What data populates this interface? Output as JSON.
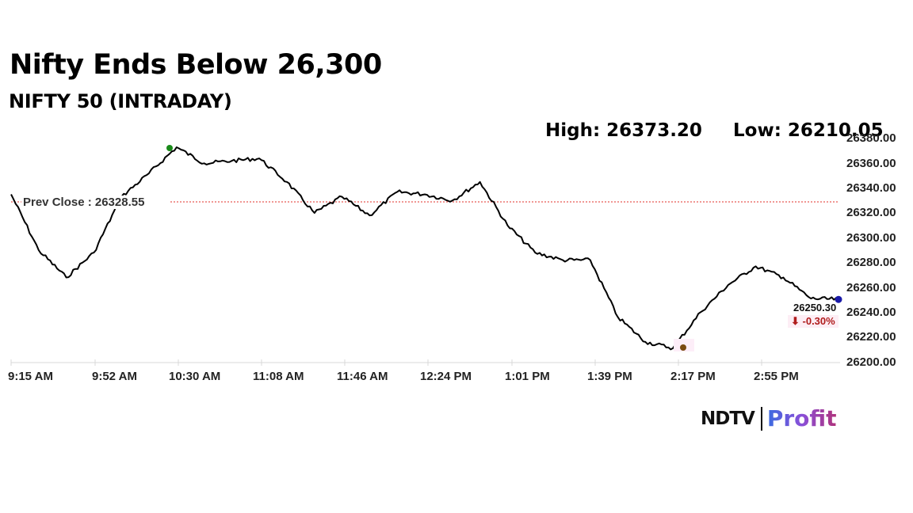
{
  "header": {
    "title": "Nifty Ends Below 26,300",
    "subtitle": "NIFTY 50 (INTRADAY)",
    "high_label": "High: 26373.20",
    "low_label": "Low: 26210.05"
  },
  "annotations": {
    "prev_close_label": "Prev Close : 26328.55",
    "last_value": "26250.30",
    "change": "⬇ -0.30%"
  },
  "y_ticks": [
    "26380.00",
    "26360.00",
    "26340.00",
    "26320.00",
    "26300.00",
    "26280.00",
    "26260.00",
    "26240.00",
    "26220.00",
    "26200.00"
  ],
  "x_ticks": [
    "9:15 AM",
    "9:52 AM",
    "10:30 AM",
    "11:08 AM",
    "11:46 AM",
    "12:24 PM",
    "1:01 PM",
    "1:39 PM",
    "2:17 PM",
    "2:55 PM"
  ],
  "logo": {
    "brand": "NDTV",
    "product": "Profit"
  },
  "colors": {
    "line": "#000000",
    "prev_close": "#e0302a",
    "high_marker": "#1a8a1a",
    "low_marker": "#7a4a10",
    "last_marker": "#1a1aa8",
    "negative": "#b01c1c"
  },
  "chart_data": {
    "type": "line",
    "title": "Nifty Ends Below 26,300",
    "subtitle": "NIFTY 50 (INTRADAY)",
    "xlabel": "",
    "ylabel": "",
    "ylim": [
      26200,
      26380
    ],
    "x": [
      "9:15 AM",
      "9:30 AM",
      "9:40 AM",
      "9:52 AM",
      "10:05 AM",
      "10:20 AM",
      "10:30 AM",
      "10:45 AM",
      "11:00 AM",
      "11:08 AM",
      "11:20 AM",
      "11:35 AM",
      "11:46 AM",
      "12:00 PM",
      "12:10 PM",
      "12:24 PM",
      "12:35 PM",
      "12:45 PM",
      "1:01 PM",
      "1:15 PM",
      "1:25 PM",
      "1:39 PM",
      "1:50 PM",
      "2:05 PM",
      "2:17 PM",
      "2:30 PM",
      "2:45 PM",
      "2:55 PM",
      "3:05 PM",
      "3:15 PM",
      "3:29 PM"
    ],
    "series": [
      {
        "name": "NIFTY 50",
        "values": [
          26335,
          26290,
          26268,
          26288,
          26333,
          26352,
          26373,
          26360,
          26362,
          26364,
          26345,
          26320,
          26333,
          26318,
          26337,
          26335,
          26330,
          26345,
          26310,
          26288,
          26282,
          26282,
          26236,
          26216,
          26211,
          26240,
          26262,
          26277,
          26268,
          26251,
          26250.3
        ]
      }
    ],
    "reference_lines": [
      {
        "label": "Prev Close",
        "value": 26328.55
      }
    ],
    "high": 26373.2,
    "low": 26210.05,
    "last": 26250.3,
    "change_pct": -0.3,
    "grid": false,
    "legend": "none"
  }
}
